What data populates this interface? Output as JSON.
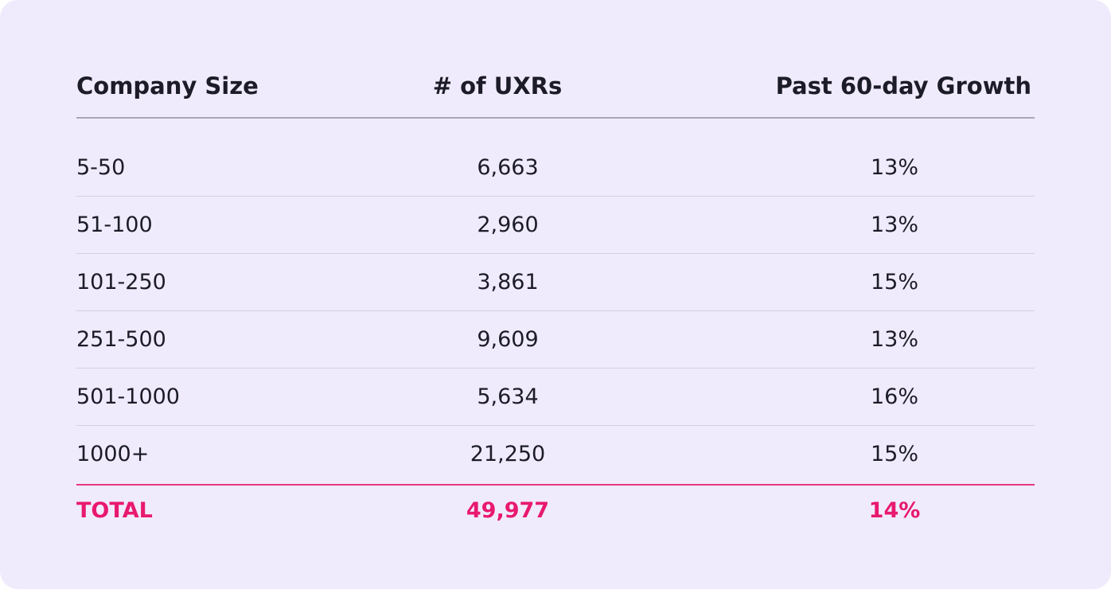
{
  "table": {
    "headers": [
      "Company Size",
      "# of UXRs",
      "Past 60-day Growth"
    ],
    "rows": [
      [
        "5-50",
        "6,663",
        "13%"
      ],
      [
        "51-100",
        "2,960",
        "13%"
      ],
      [
        "101-250",
        "3,861",
        "15%"
      ],
      [
        "251-500",
        "9,609",
        "13%"
      ],
      [
        "501-1000",
        "5,634",
        "16%"
      ],
      [
        "1000+",
        "21,250",
        "15%"
      ]
    ],
    "total": [
      "TOTAL",
      "49,977",
      "14%"
    ]
  },
  "colors": {
    "background": "#f0ebfc",
    "text": "#1c1c28",
    "accent": "#e8196e"
  }
}
